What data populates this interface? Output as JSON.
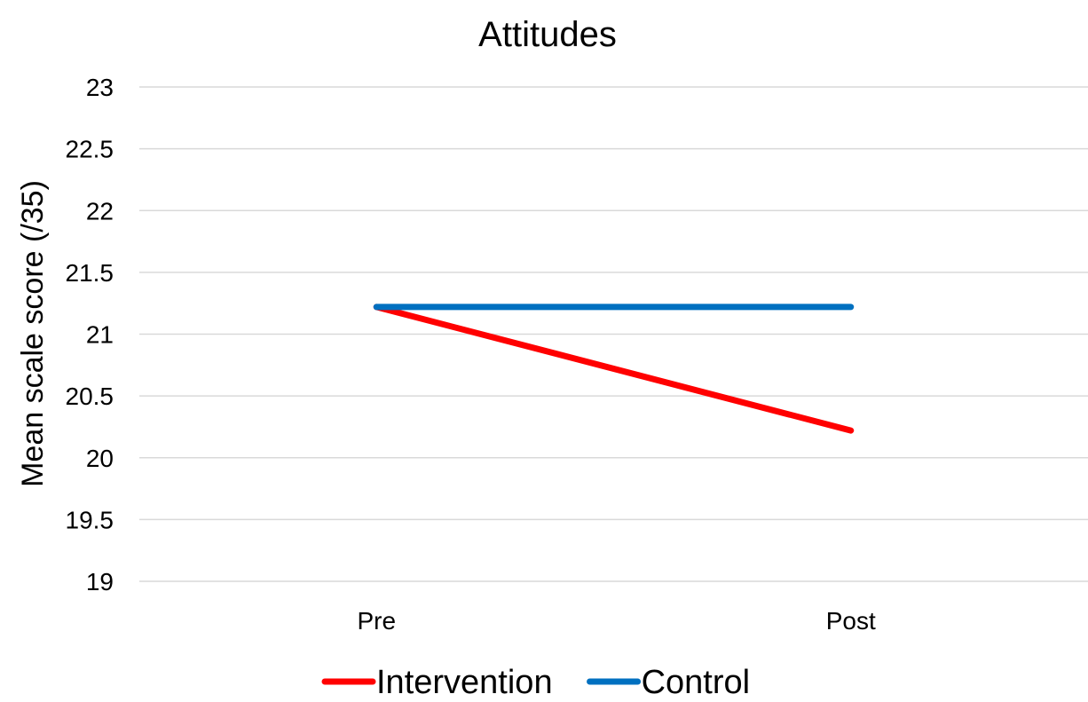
{
  "chart_data": {
    "type": "line",
    "title": "Attitudes",
    "xlabel": "",
    "ylabel": "Mean scale score (/35)",
    "categories": [
      "Pre",
      "Post"
    ],
    "ylim": [
      19,
      23
    ],
    "yticks": [
      "19",
      "19.5",
      "20",
      "20.5",
      "21",
      "21.5",
      "22",
      "22.5",
      "23"
    ],
    "grid": true,
    "legend_position": "bottom",
    "series": [
      {
        "name": "Intervention",
        "color": "#ff0000",
        "values": [
          21.22,
          20.22
        ]
      },
      {
        "name": "Control",
        "color": "#0070c0",
        "values": [
          21.22,
          21.22
        ]
      }
    ]
  }
}
